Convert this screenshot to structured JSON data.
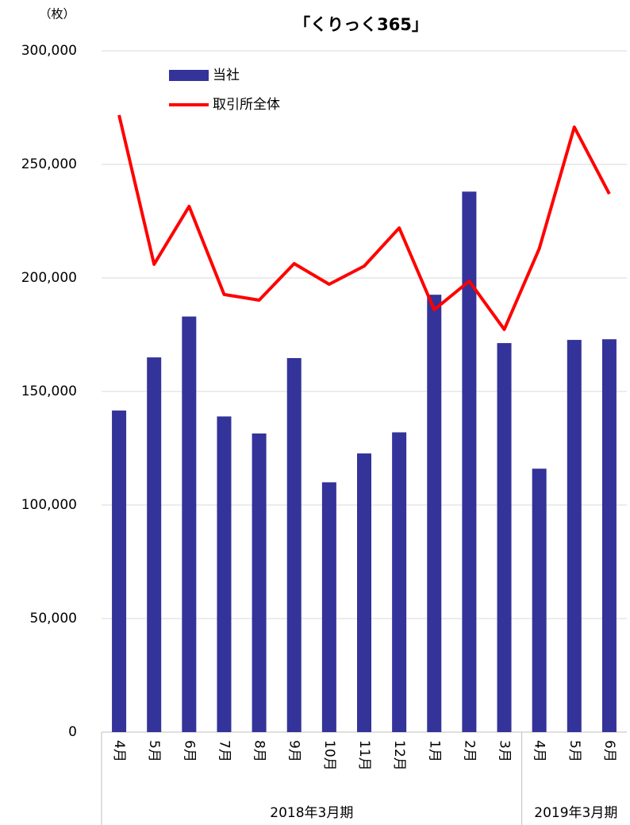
{
  "chart_data": {
    "type": "bar-line",
    "title": "「くりっく365」",
    "y_unit": "（枚）",
    "groups": [
      {
        "name": "2018年3月期",
        "categories": [
          "4月",
          "5月",
          "6月",
          "7月",
          "8月",
          "9月",
          "10月",
          "11月",
          "12月",
          "1月",
          "2月",
          "3月"
        ]
      },
      {
        "name": "2019年3月期",
        "categories": [
          "4月",
          "5月",
          "6月"
        ]
      }
    ],
    "series": [
      {
        "name": "当社",
        "type": "bar",
        "color": "#333399",
        "values": [
          141600,
          165000,
          183000,
          139000,
          131500,
          164700,
          110000,
          122700,
          132000,
          192600,
          238000,
          171300,
          116000,
          172700,
          173000
        ]
      },
      {
        "name": "取引所全体",
        "type": "line",
        "color": "#ff0000",
        "values": [
          271700,
          206000,
          231500,
          192700,
          190200,
          206300,
          197200,
          205200,
          222000,
          186000,
          198600,
          177300,
          212900,
          266400,
          237000
        ]
      }
    ],
    "ylim": [
      0,
      300000
    ],
    "yticks": [
      0,
      {
        "value": 50000,
        "label": "50,000"
      },
      {
        "value": 100000,
        "label": "100,000"
      },
      {
        "value": 150000,
        "label": "150,000"
      },
      {
        "value": 200000,
        "label": "200,000"
      },
      {
        "value": 250000,
        "label": "250,000"
      },
      {
        "value": 300000,
        "label": "300,000"
      }
    ],
    "grid": true
  }
}
